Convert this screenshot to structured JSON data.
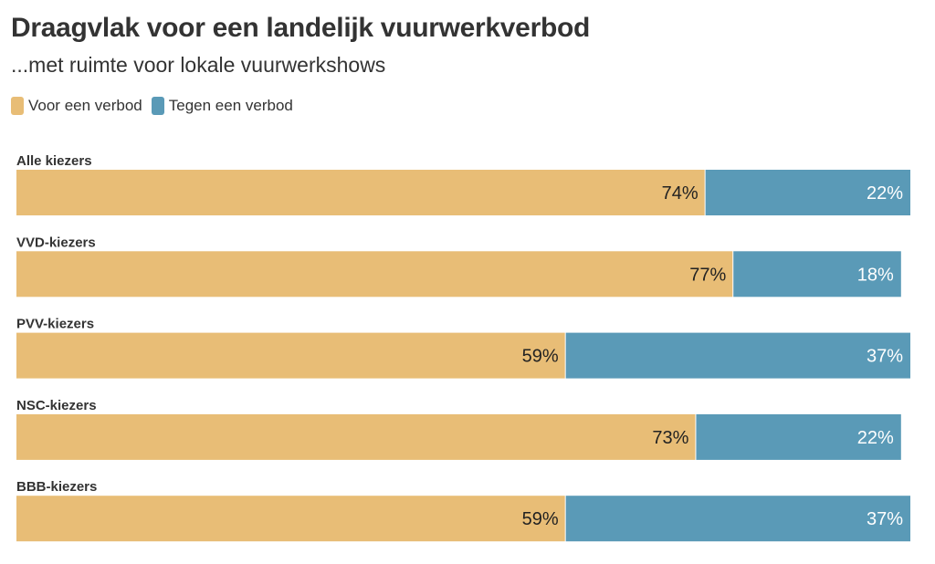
{
  "chart_data": {
    "type": "bar",
    "orientation": "horizontal",
    "stacked": true,
    "title": "Draagvlak voor een landelijk vuurwerkverbod",
    "subtitle": "...met ruimte voor lokale vuurwerkshows",
    "categories": [
      "Alle kiezers",
      "VVD-kiezers",
      "PVV-kiezers",
      "NSC-kiezers",
      "BBB-kiezers"
    ],
    "series": [
      {
        "name": "Voor een verbod",
        "values": [
          74,
          77,
          59,
          73,
          59
        ],
        "labels": [
          "74%",
          "77%",
          "59%",
          "73%",
          "59%"
        ],
        "color": "#e8bd76",
        "label_color": "#222222"
      },
      {
        "name": "Tegen een verbod",
        "values": [
          22,
          18,
          37,
          22,
          37
        ],
        "labels": [
          "22%",
          "18%",
          "37%",
          "22%",
          "37%"
        ],
        "color": "#5a9ab7",
        "label_color": "#ffffff"
      }
    ],
    "xlim": [
      0,
      96
    ],
    "grid": false,
    "legend_position": "top-left"
  }
}
